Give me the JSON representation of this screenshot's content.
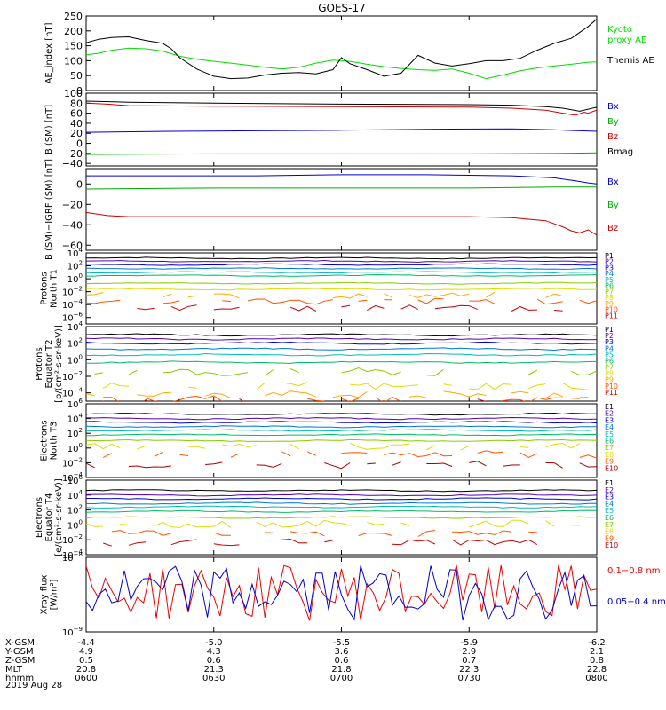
{
  "title": "GOES-17",
  "date": "2019 Aug 28",
  "ephemeris": {
    "labels": [
      "X-GSM",
      "Y-GSM",
      "Z-GSM",
      "MLT",
      "hhmm"
    ],
    "columns": [
      [
        "-4.4",
        "4.9",
        "0.5",
        "20.8",
        "0600"
      ],
      [
        "-5.0",
        "4.3",
        "0.6",
        "21.3",
        "0630"
      ],
      [
        "-5.5",
        "3.6",
        "0.6",
        "21.8",
        "0700"
      ],
      [
        "-5.9",
        "2.9",
        "0.7",
        "22.3",
        "0730"
      ],
      [
        "-6.2",
        "2.1",
        "0.8",
        "22.8",
        "0800"
      ]
    ]
  },
  "chart_data": [
    {
      "type": "line",
      "id": "ae",
      "ylabel": "AE_index [nT]",
      "yticks": [
        "250",
        "200",
        "150",
        "100",
        "50",
        "0"
      ],
      "ylim": [
        0,
        250
      ],
      "x_range_minutes": [
        0,
        120
      ],
      "series": [
        {
          "name": "Kyoto proxy AE",
          "color": "#00dd00",
          "legend": [
            "Kyoto",
            "proxy AE"
          ],
          "x": [
            0,
            3,
            6,
            10,
            14,
            18,
            22,
            26,
            30,
            34,
            38,
            42,
            46,
            50,
            54,
            58,
            62,
            66,
            70,
            74,
            78,
            82,
            86,
            90,
            94,
            98,
            102,
            106,
            110,
            114,
            118,
            120
          ],
          "y": [
            120,
            125,
            135,
            142,
            140,
            132,
            115,
            105,
            98,
            92,
            85,
            78,
            72,
            78,
            92,
            102,
            98,
            88,
            80,
            74,
            70,
            68,
            72,
            58,
            40,
            52,
            66,
            76,
            82,
            88,
            95,
            96
          ]
        },
        {
          "name": "Themis AE",
          "color": "#000000",
          "legend": [
            "Themis AE"
          ],
          "x": [
            0,
            3,
            6,
            10,
            14,
            18,
            20,
            22,
            26,
            30,
            34,
            38,
            42,
            46,
            50,
            54,
            58,
            60,
            62,
            66,
            70,
            74,
            78,
            82,
            86,
            90,
            94,
            98,
            102,
            106,
            110,
            114,
            118,
            120
          ],
          "y": [
            160,
            172,
            178,
            180,
            168,
            158,
            140,
            110,
            72,
            48,
            40,
            42,
            52,
            58,
            60,
            56,
            70,
            110,
            90,
            70,
            48,
            58,
            118,
            92,
            82,
            90,
            100,
            100,
            108,
            135,
            158,
            175,
            215,
            240
          ]
        }
      ]
    },
    {
      "type": "line",
      "id": "bsm",
      "ylabel": "B (SM) [nT]",
      "yticks": [
        "100",
        "80",
        "60",
        "40",
        "20",
        "0",
        "−20",
        "−40"
      ],
      "ylim": [
        -45,
        100
      ],
      "x_range_minutes": [
        0,
        120
      ],
      "series": [
        {
          "name": "Bx",
          "color": "#0000cc",
          "x": [
            0,
            20,
            40,
            60,
            80,
            100,
            110,
            116,
            120
          ],
          "y": [
            22,
            24,
            25,
            26,
            28,
            29,
            27,
            25,
            24
          ]
        },
        {
          "name": "By",
          "color": "#00aa00",
          "x": [
            0,
            30,
            60,
            90,
            110,
            120
          ],
          "y": [
            -22,
            -21,
            -21,
            -21,
            -20,
            -19
          ]
        },
        {
          "name": "Bz",
          "color": "#cc0000",
          "x": [
            0,
            5,
            10,
            30,
            60,
            90,
            100,
            108,
            112,
            115,
            117,
            118,
            120
          ],
          "y": [
            80,
            78,
            75,
            74,
            73,
            72,
            70,
            66,
            60,
            56,
            62,
            60,
            66
          ]
        },
        {
          "name": "Bmag",
          "color": "#000000",
          "x": [
            0,
            10,
            30,
            60,
            90,
            100,
            108,
            112,
            116,
            120
          ],
          "y": [
            84,
            82,
            80,
            78,
            77,
            76,
            73,
            70,
            64,
            72
          ]
        }
      ]
    },
    {
      "type": "line",
      "id": "digrf",
      "ylabel": "B (SM)−IGRF (SM) [nT]",
      "yticks": [
        "0",
        "−20",
        "−40",
        "−60"
      ],
      "ylim": [
        -65,
        15
      ],
      "x_range_minutes": [
        0,
        120
      ],
      "series": [
        {
          "name": "Bx",
          "color": "#0000cc",
          "x": [
            0,
            20,
            40,
            60,
            80,
            100,
            110,
            115,
            118,
            120
          ],
          "y": [
            8,
            8,
            8,
            9,
            9,
            8,
            6,
            3,
            1,
            0
          ]
        },
        {
          "name": "By",
          "color": "#00aa00",
          "x": [
            0,
            30,
            60,
            90,
            110,
            120
          ],
          "y": [
            -5,
            -4,
            -4,
            -4,
            -3,
            -3
          ]
        },
        {
          "name": "Bz",
          "color": "#cc0000",
          "x": [
            0,
            5,
            10,
            30,
            60,
            90,
            100,
            108,
            112,
            114,
            116,
            118,
            120
          ],
          "y": [
            -28,
            -31,
            -32,
            -32,
            -32,
            -32,
            -33,
            -36,
            -42,
            -46,
            -48,
            -45,
            -50
          ]
        }
      ]
    },
    {
      "type": "line",
      "id": "protons_t1",
      "scale": "log",
      "ylabel": [
        "Protons",
        "North T1"
      ],
      "yticks_exp": [
        4,
        2,
        0,
        -2,
        -4,
        -6
      ],
      "ylim_log10": [
        -7,
        4
      ],
      "x_range_minutes": [
        0,
        120
      ],
      "series": [
        {
          "name": "P1",
          "color": "#000000",
          "level": 3.2
        },
        {
          "name": "P2",
          "color": "#5500aa",
          "level": 2.7
        },
        {
          "name": "P3",
          "color": "#0000cc",
          "level": 2.2
        },
        {
          "name": "P4",
          "color": "#0077cc",
          "level": 1.6
        },
        {
          "name": "P5",
          "color": "#00bbbb",
          "level": 1.0
        },
        {
          "name": "P6",
          "color": "#00bb66",
          "level": 0.5
        },
        {
          "name": "P7",
          "color": "#88cc00",
          "level": -0.7
        },
        {
          "name": "P8",
          "color": "#dddd00",
          "level": -1.6
        },
        {
          "name": "P9",
          "color": "#ffaa00",
          "level": -2.6
        },
        {
          "name": "P10",
          "color": "#ff5500",
          "level": -3.5
        },
        {
          "name": "P11",
          "color": "#cc0000",
          "level": -4.5
        }
      ]
    },
    {
      "type": "line",
      "id": "protons_t2",
      "scale": "log",
      "ylabel": [
        "Protons",
        "Equator T2",
        "[p/(cm²-s-sr-keV)]"
      ],
      "yticks_exp": [
        4,
        2,
        0,
        -2,
        -4
      ],
      "ylim_log10": [
        -5,
        4
      ],
      "x_range_minutes": [
        0,
        120
      ],
      "series": [
        {
          "name": "P1",
          "color": "#000000",
          "level": 3.0
        },
        {
          "name": "P2",
          "color": "#5500aa",
          "level": 2.5
        },
        {
          "name": "P3",
          "color": "#0000cc",
          "level": 2.0
        },
        {
          "name": "P4",
          "color": "#0077cc",
          "level": 1.3
        },
        {
          "name": "P5",
          "color": "#00bbbb",
          "level": 0.6
        },
        {
          "name": "P6",
          "color": "#00bb66",
          "level": -0.3
        },
        {
          "name": "P7",
          "color": "#88cc00",
          "level": -1.5
        },
        {
          "name": "P8",
          "color": "#dddd00",
          "level": -3.2
        },
        {
          "name": "P9",
          "color": "#ffaa00",
          "level": -4.2
        },
        {
          "name": "P10",
          "color": "#ff5500",
          "level": -4.8
        },
        {
          "name": "P11",
          "color": "#cc0000",
          "level": -5.2
        }
      ]
    },
    {
      "type": "line",
      "id": "electrons_t3",
      "scale": "log",
      "ylabel": [
        "Electrons",
        "North T3"
      ],
      "yticks_exp": [
        6,
        4,
        2,
        0,
        -2,
        -4
      ],
      "ylim_log10": [
        -4,
        6
      ],
      "x_range_minutes": [
        0,
        120
      ],
      "series": [
        {
          "name": "E1",
          "color": "#000000",
          "level": 4.6
        },
        {
          "name": "E2",
          "color": "#5500aa",
          "level": 4.0
        },
        {
          "name": "E3",
          "color": "#0000cc",
          "level": 3.5
        },
        {
          "name": "E4",
          "color": "#0077cc",
          "level": 2.9
        },
        {
          "name": "E5",
          "color": "#00bbbb",
          "level": 2.4
        },
        {
          "name": "E6",
          "color": "#00bb66",
          "level": 1.8
        },
        {
          "name": "E7",
          "color": "#88cc00",
          "level": 1.0
        },
        {
          "name": "E8",
          "color": "#dddd00",
          "level": 0.2
        },
        {
          "name": "E9",
          "color": "#ff5500",
          "level": -0.9
        },
        {
          "name": "E10",
          "color": "#aa0000",
          "level": -2.3
        }
      ]
    },
    {
      "type": "line",
      "id": "electrons_t4",
      "scale": "log",
      "ylabel": [
        "Electrons",
        "Equator T4",
        "[e/(cm²-s-sr-keV)]"
      ],
      "yticks_exp": [
        6,
        4,
        2,
        0,
        -2,
        -4
      ],
      "ylim_log10": [
        -4,
        6
      ],
      "x_range_minutes": [
        0,
        120
      ],
      "series": [
        {
          "name": "E1",
          "color": "#000000",
          "level": 4.6
        },
        {
          "name": "E2",
          "color": "#5500aa",
          "level": 4.0
        },
        {
          "name": "E3",
          "color": "#0000cc",
          "level": 3.5
        },
        {
          "name": "E4",
          "color": "#0077cc",
          "level": 2.9
        },
        {
          "name": "E5",
          "color": "#00bbbb",
          "level": 2.4
        },
        {
          "name": "E6",
          "color": "#00bb66",
          "level": 1.8
        },
        {
          "name": "E7",
          "color": "#88cc00",
          "level": 1.0
        },
        {
          "name": "E8",
          "color": "#dddd00",
          "level": 0.1
        },
        {
          "name": "E9",
          "color": "#ff5500",
          "level": -1.1
        },
        {
          "name": "E10",
          "color": "#cc0000",
          "level": -2.4
        }
      ]
    },
    {
      "type": "line",
      "id": "xray",
      "scale": "log",
      "ylabel": [
        "Xray flux",
        "[W/m²]"
      ],
      "yticks_exp": [
        -8,
        -9
      ],
      "ylim_log10": [
        -9,
        -8
      ],
      "x_range_minutes": [
        0,
        120
      ],
      "series": [
        {
          "name": "0.1−0.8 nm",
          "color": "#ee0000"
        },
        {
          "name": "0.05−0.4 nm",
          "color": "#0000cc"
        }
      ]
    }
  ]
}
